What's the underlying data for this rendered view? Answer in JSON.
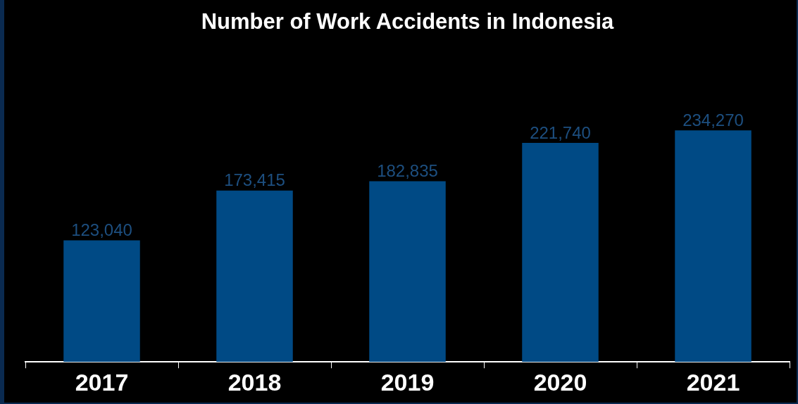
{
  "chart_data": {
    "type": "bar",
    "title": "Number of Work Accidents in Indonesia",
    "categories": [
      "2017",
      "2018",
      "2019",
      "2020",
      "2021"
    ],
    "values": [
      123040,
      173415,
      182835,
      221740,
      234270
    ],
    "color": "#004a85",
    "value_labels": [
      "123,040",
      "173,415",
      "182,835",
      "221,740",
      "234,270"
    ],
    "grid": false,
    "legend": false
  }
}
